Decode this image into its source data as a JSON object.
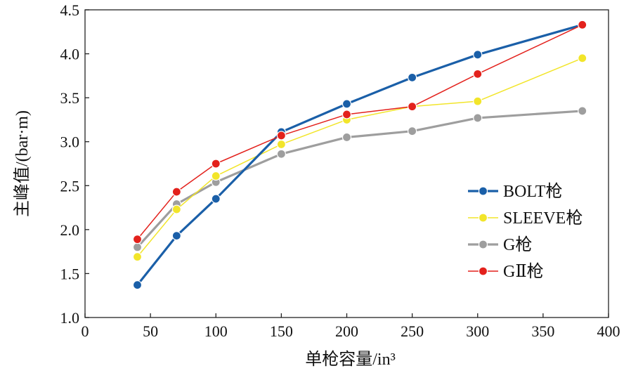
{
  "chart_data": {
    "type": "line",
    "xlabel": "单枪容量/in³",
    "ylabel": "主峰值/(bar·m)",
    "xlim": [
      0,
      400
    ],
    "ylim": [
      1.0,
      4.5
    ],
    "xticks": [
      "0",
      "50",
      "100",
      "150",
      "200",
      "250",
      "300",
      "350",
      "400"
    ],
    "yticks": [
      "1.0",
      "1.5",
      "2.0",
      "2.5",
      "3.0",
      "3.5",
      "4.0",
      "4.5"
    ],
    "grid": false,
    "legend_position": "lower-right",
    "x": [
      40,
      70,
      100,
      150,
      200,
      250,
      300,
      380
    ],
    "series": [
      {
        "name": "BOLT枪",
        "color": "#1a5fa8",
        "values": [
          1.37,
          1.93,
          2.35,
          3.11,
          3.43,
          3.73,
          3.99,
          4.33
        ]
      },
      {
        "name": "SLEEVE枪",
        "color": "#f2e52a",
        "values": [
          1.69,
          2.23,
          2.61,
          2.97,
          3.25,
          3.4,
          3.46,
          3.95
        ]
      },
      {
        "name": "G枪",
        "color": "#9e9e9e",
        "values": [
          1.8,
          2.29,
          2.54,
          2.86,
          3.05,
          3.12,
          3.27,
          3.35
        ]
      },
      {
        "name": "GⅡ枪",
        "color": "#e3211c",
        "values": [
          1.89,
          2.43,
          2.75,
          3.07,
          3.31,
          3.4,
          3.77,
          4.33
        ]
      }
    ]
  }
}
